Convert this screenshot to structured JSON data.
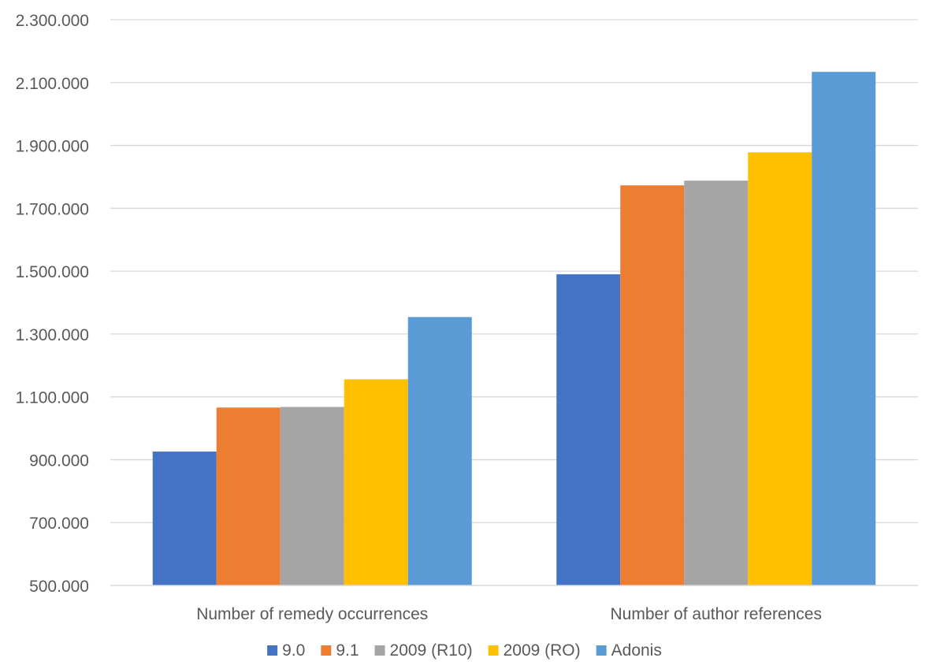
{
  "chart_data": {
    "type": "bar",
    "title": "",
    "xlabel": "",
    "ylabel": "",
    "categories": [
      "Number of remedy occurrences",
      "Number of author references"
    ],
    "series": [
      {
        "name": "9.0",
        "color": "#4472C4",
        "values": [
          926000,
          1490000
        ]
      },
      {
        "name": "9.1",
        "color": "#ED7D31",
        "values": [
          1066000,
          1773000
        ]
      },
      {
        "name": "2009 (R10)",
        "color": "#A5A5A5",
        "values": [
          1068000,
          1788000
        ]
      },
      {
        "name": "2009 (RO)",
        "color": "#FFC000",
        "values": [
          1156000,
          1878000
        ]
      },
      {
        "name": "Adonis",
        "color": "#5B9BD5",
        "values": [
          1354000,
          2134000
        ]
      }
    ],
    "ylim": [
      500000,
      2300000
    ],
    "yticks": [
      500000,
      700000,
      900000,
      1100000,
      1300000,
      1500000,
      1700000,
      1900000,
      2100000,
      2300000
    ],
    "ytick_labels": [
      "500.000",
      "700.000",
      "900.000",
      "1.100.000",
      "1.300.000",
      "1.500.000",
      "1.700.000",
      "1.900.000",
      "2.100.000",
      "2.300.000"
    ],
    "grid": true,
    "legend_position": "bottom"
  }
}
